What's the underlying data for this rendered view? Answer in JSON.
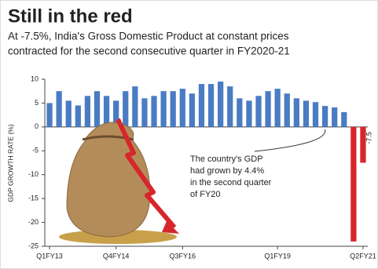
{
  "chart_data": {
    "type": "bar",
    "title": "Still in the red",
    "subtitle": [
      "At -7.5%, India's Gross Domestic Product at constant prices",
      "contracted for the second consecutive quarter in FY2020-21"
    ],
    "y_label": "GDP GROWTH RATE (%)",
    "categories": [
      "Q1FY13",
      null,
      null,
      null,
      null,
      null,
      null,
      "Q4FY14",
      null,
      null,
      null,
      null,
      null,
      null,
      "Q3FY16",
      null,
      null,
      null,
      null,
      null,
      null,
      null,
      null,
      null,
      "Q1FY19",
      null,
      null,
      null,
      null,
      null,
      null,
      null,
      null,
      "Q2FY21"
    ],
    "values": [
      5,
      7.5,
      5.5,
      4.5,
      6.5,
      7.5,
      6.5,
      5.5,
      7.5,
      8.5,
      6,
      6.5,
      7.5,
      7.5,
      8,
      7,
      9,
      9,
      9.5,
      8.5,
      6,
      5.5,
      6.5,
      7.5,
      8,
      7,
      6,
      5.5,
      5.2,
      4.4,
      4.1,
      3.1,
      -24,
      -7.5
    ],
    "value_labels": [
      null,
      null,
      null,
      null,
      null,
      null,
      null,
      null,
      null,
      null,
      null,
      null,
      null,
      null,
      null,
      null,
      null,
      null,
      null,
      null,
      null,
      null,
      null,
      null,
      null,
      null,
      null,
      null,
      null,
      null,
      null,
      null,
      null,
      "-7.5"
    ],
    "color": "#4a7cc4",
    "negative_color": "#d7262b",
    "ylim": [
      -25,
      10
    ],
    "yticks": [
      -25,
      -20,
      -15,
      -10,
      -5,
      0,
      5,
      10
    ],
    "annotation": [
      "The country's GDP",
      "had grown by 4.4%",
      "in the second quarter",
      "of FY20"
    ]
  }
}
